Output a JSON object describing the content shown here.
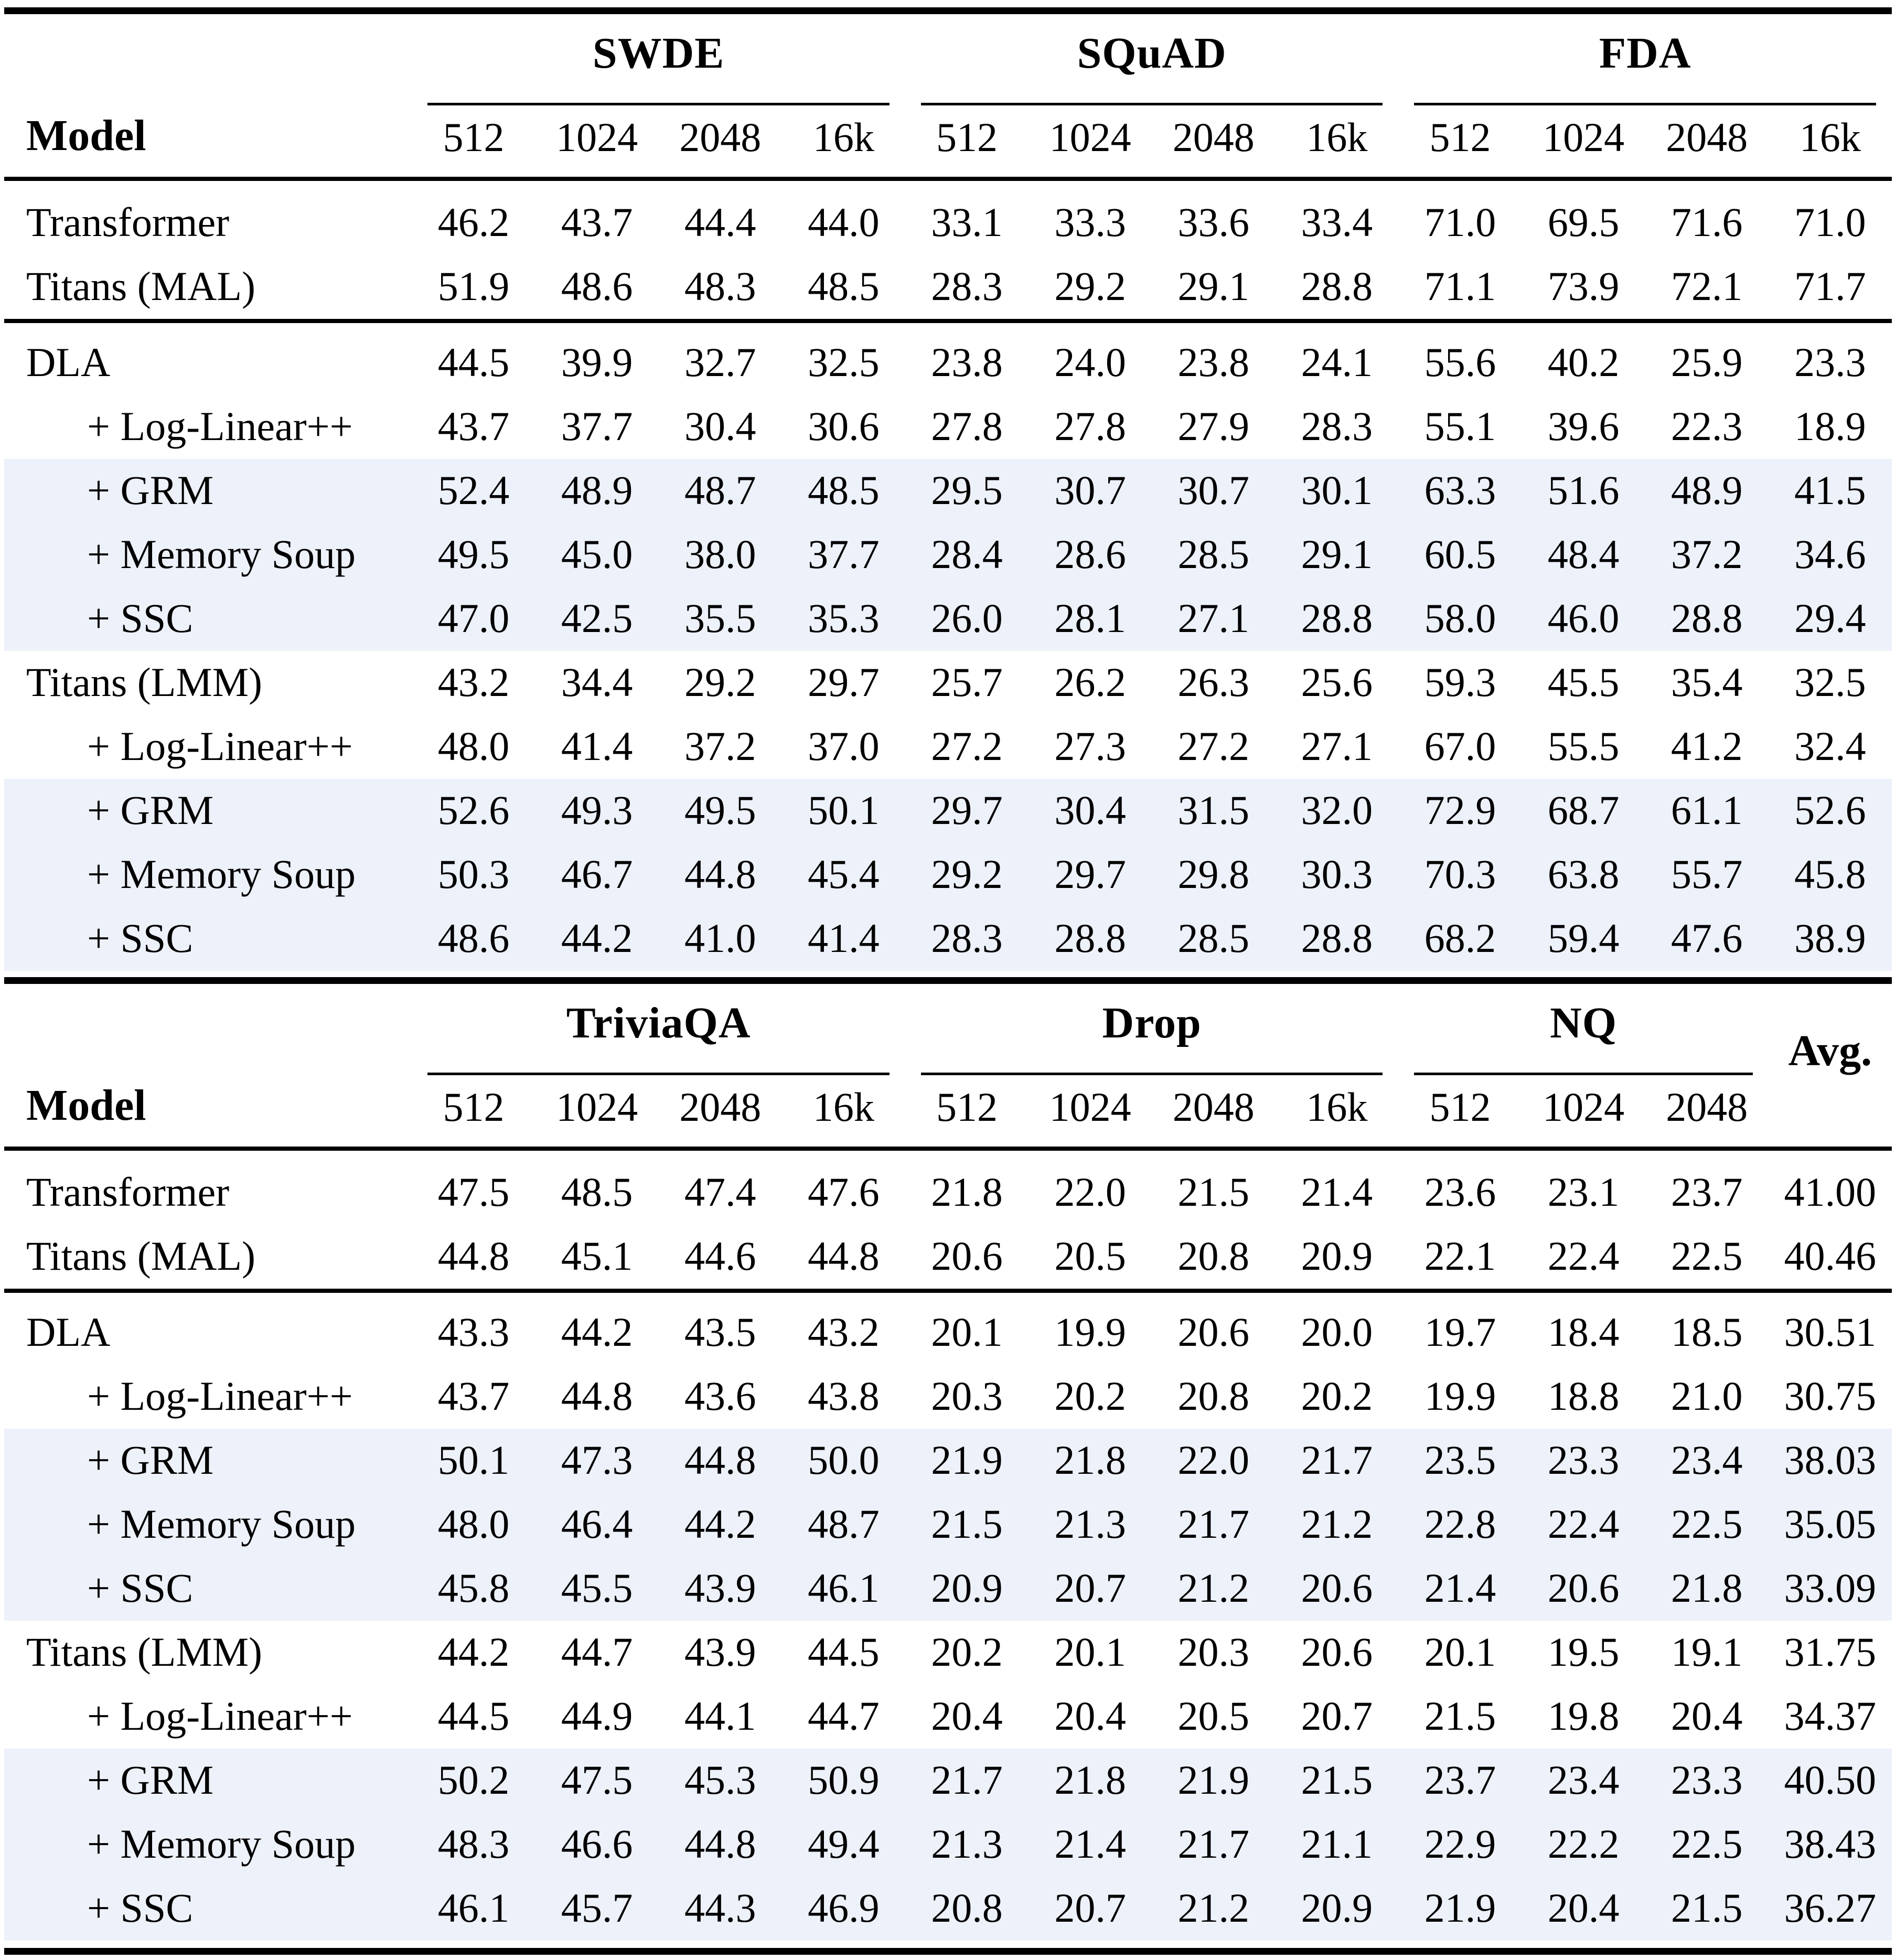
{
  "page": {
    "background": "#ffffff",
    "rule_color": "#000000",
    "row_highlight_color": "#edf1f9",
    "text_color": "#000000"
  },
  "tables": [
    {
      "name": "results-table-top",
      "model_header": "Model",
      "avg_label": null,
      "groups": [
        {
          "label": "SWDE",
          "subcols": [
            "512",
            "1024",
            "2048",
            "16k"
          ]
        },
        {
          "label": "SQuAD",
          "subcols": [
            "512",
            "1024",
            "2048",
            "16k"
          ]
        },
        {
          "label": "FDA",
          "subcols": [
            "512",
            "1024",
            "2048",
            "16k"
          ]
        }
      ],
      "rows": [
        {
          "label": "Transformer",
          "indent": false,
          "highlight": false,
          "rule_after": false,
          "space_before": false,
          "values": [
            "46.2",
            "43.7",
            "44.4",
            "44.0",
            "33.1",
            "33.3",
            "33.6",
            "33.4",
            "71.0",
            "69.5",
            "71.6",
            "71.0"
          ]
        },
        {
          "label": "Titans (MAL)",
          "indent": false,
          "highlight": false,
          "rule_after": true,
          "space_before": false,
          "values": [
            "51.9",
            "48.6",
            "48.3",
            "48.5",
            "28.3",
            "29.2",
            "29.1",
            "28.8",
            "71.1",
            "73.9",
            "72.1",
            "71.7"
          ]
        },
        {
          "label": "DLA",
          "indent": false,
          "highlight": false,
          "rule_after": false,
          "space_before": true,
          "values": [
            "44.5",
            "39.9",
            "32.7",
            "32.5",
            "23.8",
            "24.0",
            "23.8",
            "24.1",
            "55.6",
            "40.2",
            "25.9",
            "23.3"
          ]
        },
        {
          "label": "+ Log-Linear++",
          "indent": true,
          "highlight": false,
          "rule_after": false,
          "space_before": false,
          "values": [
            "43.7",
            "37.7",
            "30.4",
            "30.6",
            "27.8",
            "27.8",
            "27.9",
            "28.3",
            "55.1",
            "39.6",
            "22.3",
            "18.9"
          ]
        },
        {
          "label": "+ GRM",
          "indent": true,
          "highlight": true,
          "rule_after": false,
          "space_before": false,
          "values": [
            "52.4",
            "48.9",
            "48.7",
            "48.5",
            "29.5",
            "30.7",
            "30.7",
            "30.1",
            "63.3",
            "51.6",
            "48.9",
            "41.5"
          ]
        },
        {
          "label": "+ Memory Soup",
          "indent": true,
          "highlight": true,
          "rule_after": false,
          "space_before": false,
          "values": [
            "49.5",
            "45.0",
            "38.0",
            "37.7",
            "28.4",
            "28.6",
            "28.5",
            "29.1",
            "60.5",
            "48.4",
            "37.2",
            "34.6"
          ]
        },
        {
          "label": "+ SSC",
          "indent": true,
          "highlight": true,
          "rule_after": false,
          "space_before": false,
          "values": [
            "47.0",
            "42.5",
            "35.5",
            "35.3",
            "26.0",
            "28.1",
            "27.1",
            "28.8",
            "58.0",
            "46.0",
            "28.8",
            "29.4"
          ]
        },
        {
          "label": "Titans (LMM)",
          "indent": false,
          "highlight": false,
          "rule_after": false,
          "space_before": false,
          "values": [
            "43.2",
            "34.4",
            "29.2",
            "29.7",
            "25.7",
            "26.2",
            "26.3",
            "25.6",
            "59.3",
            "45.5",
            "35.4",
            "32.5"
          ]
        },
        {
          "label": "+ Log-Linear++",
          "indent": true,
          "highlight": false,
          "rule_after": false,
          "space_before": false,
          "values": [
            "48.0",
            "41.4",
            "37.2",
            "37.0",
            "27.2",
            "27.3",
            "27.2",
            "27.1",
            "67.0",
            "55.5",
            "41.2",
            "32.4"
          ]
        },
        {
          "label": "+ GRM",
          "indent": true,
          "highlight": true,
          "rule_after": false,
          "space_before": false,
          "values": [
            "52.6",
            "49.3",
            "49.5",
            "50.1",
            "29.7",
            "30.4",
            "31.5",
            "32.0",
            "72.9",
            "68.7",
            "61.1",
            "52.6"
          ]
        },
        {
          "label": "+ Memory Soup",
          "indent": true,
          "highlight": true,
          "rule_after": false,
          "space_before": false,
          "values": [
            "50.3",
            "46.7",
            "44.8",
            "45.4",
            "29.2",
            "29.7",
            "29.8",
            "30.3",
            "70.3",
            "63.8",
            "55.7",
            "45.8"
          ]
        },
        {
          "label": "+ SSC",
          "indent": true,
          "highlight": true,
          "rule_after": false,
          "space_before": false,
          "values": [
            "48.6",
            "44.2",
            "41.0",
            "41.4",
            "28.3",
            "28.8",
            "28.5",
            "28.8",
            "68.2",
            "59.4",
            "47.6",
            "38.9"
          ]
        }
      ]
    },
    {
      "name": "results-table-bottom",
      "model_header": "Model",
      "avg_label": "Avg.",
      "groups": [
        {
          "label": "TriviaQA",
          "subcols": [
            "512",
            "1024",
            "2048",
            "16k"
          ]
        },
        {
          "label": "Drop",
          "subcols": [
            "512",
            "1024",
            "2048",
            "16k"
          ]
        },
        {
          "label": "NQ",
          "subcols": [
            "512",
            "1024",
            "2048"
          ]
        }
      ],
      "rows": [
        {
          "label": "Transformer",
          "indent": false,
          "highlight": false,
          "rule_after": false,
          "space_before": false,
          "values": [
            "47.5",
            "48.5",
            "47.4",
            "47.6",
            "21.8",
            "22.0",
            "21.5",
            "21.4",
            "23.6",
            "23.1",
            "23.7",
            "41.00"
          ]
        },
        {
          "label": "Titans (MAL)",
          "indent": false,
          "highlight": false,
          "rule_after": true,
          "space_before": false,
          "values": [
            "44.8",
            "45.1",
            "44.6",
            "44.8",
            "20.6",
            "20.5",
            "20.8",
            "20.9",
            "22.1",
            "22.4",
            "22.5",
            "40.46"
          ]
        },
        {
          "label": "DLA",
          "indent": false,
          "highlight": false,
          "rule_after": false,
          "space_before": true,
          "values": [
            "43.3",
            "44.2",
            "43.5",
            "43.2",
            "20.1",
            "19.9",
            "20.6",
            "20.0",
            "19.7",
            "18.4",
            "18.5",
            "30.51"
          ]
        },
        {
          "label": "+ Log-Linear++",
          "indent": true,
          "highlight": false,
          "rule_after": false,
          "space_before": false,
          "values": [
            "43.7",
            "44.8",
            "43.6",
            "43.8",
            "20.3",
            "20.2",
            "20.8",
            "20.2",
            "19.9",
            "18.8",
            "21.0",
            "30.75"
          ]
        },
        {
          "label": "+ GRM",
          "indent": true,
          "highlight": true,
          "rule_after": false,
          "space_before": false,
          "values": [
            "50.1",
            "47.3",
            "44.8",
            "50.0",
            "21.9",
            "21.8",
            "22.0",
            "21.7",
            "23.5",
            "23.3",
            "23.4",
            "38.03"
          ]
        },
        {
          "label": "+ Memory Soup",
          "indent": true,
          "highlight": true,
          "rule_after": false,
          "space_before": false,
          "values": [
            "48.0",
            "46.4",
            "44.2",
            "48.7",
            "21.5",
            "21.3",
            "21.7",
            "21.2",
            "22.8",
            "22.4",
            "22.5",
            "35.05"
          ]
        },
        {
          "label": "+ SSC",
          "indent": true,
          "highlight": true,
          "rule_after": false,
          "space_before": false,
          "values": [
            "45.8",
            "45.5",
            "43.9",
            "46.1",
            "20.9",
            "20.7",
            "21.2",
            "20.6",
            "21.4",
            "20.6",
            "21.8",
            "33.09"
          ]
        },
        {
          "label": "Titans (LMM)",
          "indent": false,
          "highlight": false,
          "rule_after": false,
          "space_before": false,
          "values": [
            "44.2",
            "44.7",
            "43.9",
            "44.5",
            "20.2",
            "20.1",
            "20.3",
            "20.6",
            "20.1",
            "19.5",
            "19.1",
            "31.75"
          ]
        },
        {
          "label": "+ Log-Linear++",
          "indent": true,
          "highlight": false,
          "rule_after": false,
          "space_before": false,
          "values": [
            "44.5",
            "44.9",
            "44.1",
            "44.7",
            "20.4",
            "20.4",
            "20.5",
            "20.7",
            "21.5",
            "19.8",
            "20.4",
            "34.37"
          ]
        },
        {
          "label": "+ GRM",
          "indent": true,
          "highlight": true,
          "rule_after": false,
          "space_before": false,
          "values": [
            "50.2",
            "47.5",
            "45.3",
            "50.9",
            "21.7",
            "21.8",
            "21.9",
            "21.5",
            "23.7",
            "23.4",
            "23.3",
            "40.50"
          ]
        },
        {
          "label": "+ Memory Soup",
          "indent": true,
          "highlight": true,
          "rule_after": false,
          "space_before": false,
          "values": [
            "48.3",
            "46.6",
            "44.8",
            "49.4",
            "21.3",
            "21.4",
            "21.7",
            "21.1",
            "22.9",
            "22.2",
            "22.5",
            "38.43"
          ]
        },
        {
          "label": "+ SSC",
          "indent": true,
          "highlight": true,
          "rule_after": false,
          "space_before": false,
          "values": [
            "46.1",
            "45.7",
            "44.3",
            "46.9",
            "20.8",
            "20.7",
            "21.2",
            "20.9",
            "21.9",
            "20.4",
            "21.5",
            "36.27"
          ]
        }
      ]
    }
  ]
}
